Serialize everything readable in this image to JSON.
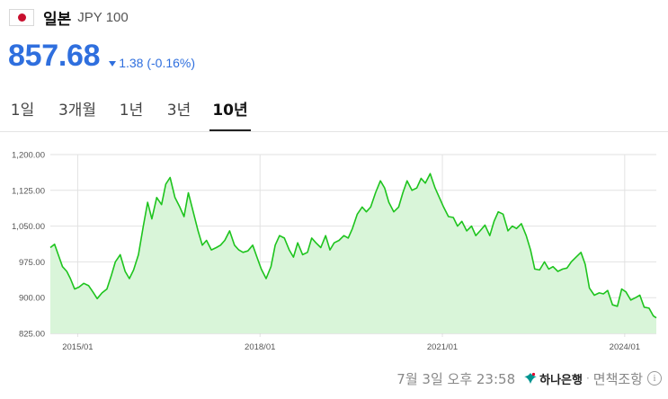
{
  "header": {
    "flag_icon": "japan-flag-icon",
    "country": "일본",
    "currency": "JPY 100"
  },
  "quote": {
    "price": "857.68",
    "direction_icon": "down-triangle-icon",
    "change": "1.38 (-0.16%)",
    "color": "#2f6fde"
  },
  "tabs": [
    {
      "label": "1일",
      "active": false
    },
    {
      "label": "3개월",
      "active": false
    },
    {
      "label": "1년",
      "active": false
    },
    {
      "label": "3년",
      "active": false
    },
    {
      "label": "10년",
      "active": true
    }
  ],
  "chart_data": {
    "type": "area",
    "ylim": [
      825,
      1200
    ],
    "yticks": [
      825,
      900,
      975,
      1050,
      1125,
      1200
    ],
    "ytick_labels": [
      "825.00",
      "900.00",
      "975.00",
      "1,050.00",
      "1,125.00",
      "1,200.00"
    ],
    "xticks": [
      "2015/01",
      "2018/01",
      "2021/01",
      "2024/01"
    ],
    "xtick_positions": [
      2015.0,
      2018.0,
      2021.0,
      2024.0
    ],
    "xlim": [
      2014.55,
      2024.52
    ],
    "grid": true,
    "line_color": "#1ec41e",
    "fill_color": "#d9f5d9",
    "series": [
      {
        "x": [
          2014.55,
          2014.62,
          2014.68,
          2014.75,
          2014.82,
          2014.88,
          2014.95,
          2015.02,
          2015.1,
          2015.18,
          2015.25,
          2015.32,
          2015.4,
          2015.48,
          2015.55,
          2015.62,
          2015.7,
          2015.78,
          2015.85,
          2015.92,
          2016.0,
          2016.08,
          2016.15,
          2016.22,
          2016.3,
          2016.38,
          2016.45,
          2016.52,
          2016.6,
          2016.68,
          2016.75,
          2016.82,
          2016.9,
          2016.98,
          2017.05,
          2017.12,
          2017.2,
          2017.28,
          2017.35,
          2017.42,
          2017.5,
          2017.58,
          2017.65,
          2017.72,
          2017.8,
          2017.88,
          2017.95,
          2018.02,
          2018.1,
          2018.18,
          2018.25,
          2018.32,
          2018.4,
          2018.48,
          2018.55,
          2018.62,
          2018.7,
          2018.78,
          2018.85,
          2018.92,
          2019.0,
          2019.08,
          2019.15,
          2019.22,
          2019.3,
          2019.38,
          2019.45,
          2019.52,
          2019.6,
          2019.68,
          2019.75,
          2019.82,
          2019.9,
          2019.98,
          2020.05,
          2020.12,
          2020.2,
          2020.28,
          2020.35,
          2020.42,
          2020.5,
          2020.58,
          2020.65,
          2020.72,
          2020.8,
          2020.88,
          2020.95,
          2021.02,
          2021.1,
          2021.18,
          2021.25,
          2021.32,
          2021.4,
          2021.48,
          2021.55,
          2021.62,
          2021.7,
          2021.78,
          2021.85,
          2021.92,
          2022.0,
          2022.08,
          2022.15,
          2022.22,
          2022.3,
          2022.38,
          2022.45,
          2022.52,
          2022.6,
          2022.68,
          2022.75,
          2022.82,
          2022.9,
          2022.98,
          2023.05,
          2023.12,
          2023.2,
          2023.28,
          2023.35,
          2023.42,
          2023.5,
          2023.58,
          2023.65,
          2023.72,
          2023.8,
          2023.88,
          2023.95,
          2024.02,
          2024.1,
          2024.18,
          2024.25,
          2024.32,
          2024.4,
          2024.47,
          2024.52
        ],
        "y": [
          1005,
          1012,
          990,
          965,
          955,
          940,
          918,
          922,
          930,
          925,
          912,
          898,
          910,
          918,
          945,
          975,
          990,
          955,
          940,
          958,
          990,
          1050,
          1100,
          1065,
          1110,
          1095,
          1138,
          1152,
          1110,
          1090,
          1070,
          1120,
          1080,
          1040,
          1010,
          1020,
          1000,
          1005,
          1010,
          1020,
          1040,
          1010,
          1000,
          995,
          998,
          1010,
          985,
          960,
          940,
          965,
          1010,
          1030,
          1025,
          1000,
          985,
          1015,
          990,
          995,
          1025,
          1015,
          1005,
          1030,
          1000,
          1015,
          1020,
          1030,
          1025,
          1045,
          1075,
          1090,
          1080,
          1090,
          1120,
          1145,
          1130,
          1100,
          1080,
          1090,
          1120,
          1145,
          1125,
          1130,
          1150,
          1140,
          1160,
          1130,
          1110,
          1090,
          1070,
          1068,
          1050,
          1060,
          1040,
          1050,
          1030,
          1040,
          1052,
          1030,
          1060,
          1080,
          1075,
          1040,
          1050,
          1045,
          1055,
          1030,
          1000,
          960,
          958,
          975,
          960,
          965,
          955,
          960,
          962,
          975,
          985,
          995,
          970,
          920,
          905,
          910,
          908,
          915,
          885,
          882,
          918,
          912,
          895,
          900,
          905,
          880,
          878,
          862,
          857.68
        ]
      }
    ]
  },
  "footer": {
    "timestamp": "7월 3일 오후 23:58",
    "bank_icon": "hana-bank-logo-icon",
    "bank_name": "하나은행",
    "separator": "·",
    "disclaimer": "면책조항",
    "info_icon": "info-circle-icon",
    "info_glyph": "i"
  }
}
